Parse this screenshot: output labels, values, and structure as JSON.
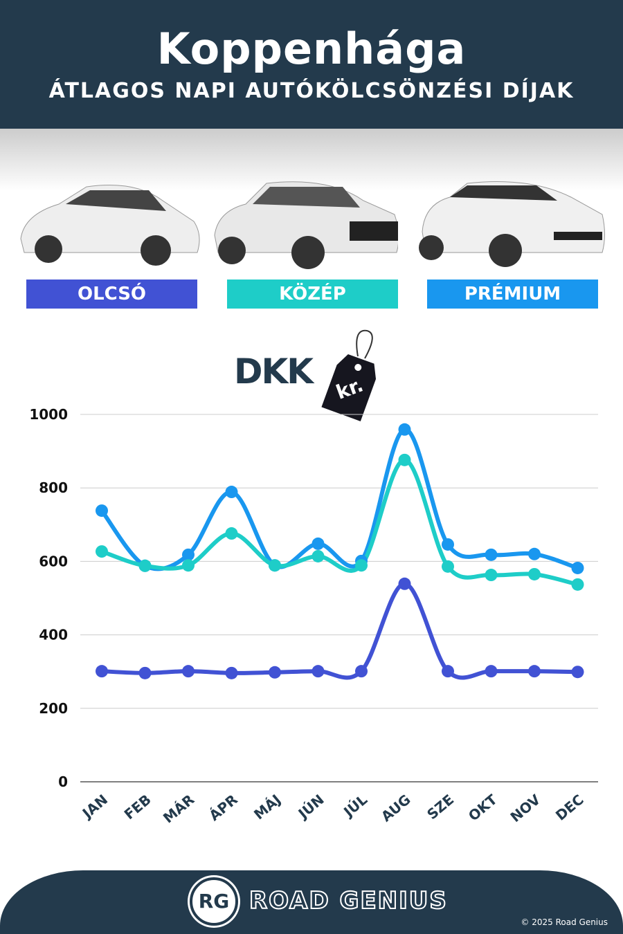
{
  "header": {
    "title": "Koppenhága",
    "subtitle": "ÁTLAGOS NAPI AUTÓKÖLCSÖNZÉSI DÍJAK"
  },
  "legend": [
    {
      "label": "OLCSÓ",
      "color": "#4152d4"
    },
    {
      "label": "KÖZÉP",
      "color": "#1ecdc8"
    },
    {
      "label": "PRÉMIUM",
      "color": "#1997ef"
    }
  ],
  "currency": {
    "code": "DKK",
    "tag": "kr."
  },
  "chart_data": {
    "type": "line",
    "categories": [
      "JAN",
      "FEB",
      "MÁR",
      "ÁPR",
      "MÁJ",
      "JÚN",
      "JÚL",
      "AUG",
      "SZE",
      "OKT",
      "NOV",
      "DEC"
    ],
    "ylim": [
      0,
      1000
    ],
    "yticks": [
      "0",
      "200",
      "400",
      "600",
      "800",
      "1000"
    ],
    "grid": true,
    "series": [
      {
        "name": "PRÉMIUM",
        "color": "#1997ef",
        "values": [
          738,
          588,
          618,
          789,
          589,
          648,
          601,
          959,
          646,
          618,
          620,
          582
        ]
      },
      {
        "name": "KÖZÉP",
        "color": "#1ecdc8",
        "values": [
          627,
          588,
          589,
          676,
          589,
          614,
          589,
          876,
          586,
          563,
          565,
          537
        ]
      },
      {
        "name": "OLCSÓ",
        "color": "#4152d4",
        "values": [
          301,
          296,
          301,
          296,
          298,
          301,
          301,
          539,
          301,
          301,
          301,
          299
        ]
      }
    ]
  },
  "footer": {
    "logo": "RG",
    "brand": "ROAD GENIUS",
    "copyright": "© 2025 Road Genius"
  }
}
